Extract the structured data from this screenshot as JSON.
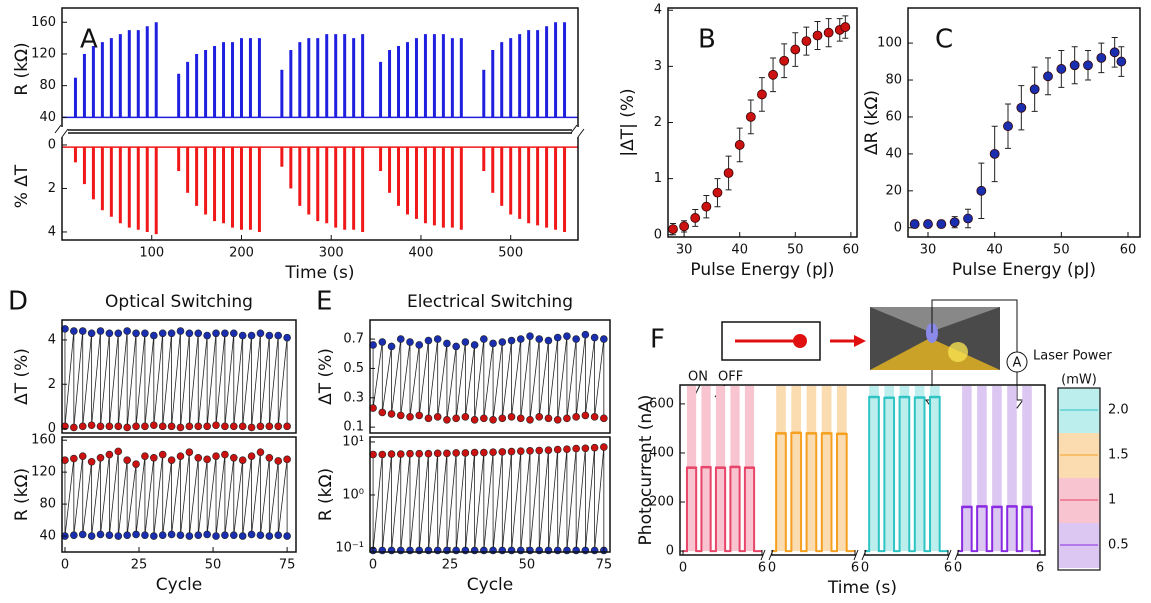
{
  "chart_data": [
    {
      "type": "spikes",
      "panel": "A",
      "ylabel": "R (kΩ)",
      "color": "#1f1fe0",
      "baseline": 40,
      "x": [
        15,
        25,
        35,
        45,
        55,
        65,
        75,
        85,
        95,
        105,
        130,
        140,
        150,
        160,
        170,
        180,
        190,
        200,
        210,
        220,
        245,
        255,
        265,
        275,
        285,
        295,
        305,
        315,
        325,
        335,
        355,
        365,
        375,
        385,
        395,
        405,
        415,
        425,
        435,
        445,
        470,
        480,
        490,
        500,
        510,
        520,
        530,
        540,
        550,
        560
      ],
      "values": [
        90,
        120,
        130,
        135,
        140,
        145,
        150,
        150,
        155,
        160,
        95,
        110,
        120,
        125,
        130,
        135,
        135,
        140,
        140,
        140,
        100,
        125,
        135,
        140,
        140,
        145,
        145,
        145,
        140,
        145,
        110,
        125,
        130,
        135,
        140,
        145,
        145,
        145,
        140,
        140,
        100,
        125,
        135,
        140,
        145,
        150,
        150,
        155,
        160,
        160
      ],
      "xlim": [
        0,
        575
      ],
      "ylim": [
        24,
        178
      ],
      "yticks": [
        40,
        80,
        120,
        160
      ]
    },
    {
      "type": "spikes",
      "ylabel": "% ΔT",
      "xlabel": "Time (s)",
      "color": "#f01818",
      "baseline": 0.1,
      "inverted": true,
      "x": [
        15,
        25,
        35,
        45,
        55,
        65,
        75,
        85,
        95,
        105,
        130,
        140,
        150,
        160,
        170,
        180,
        190,
        200,
        210,
        220,
        245,
        255,
        265,
        275,
        285,
        295,
        305,
        315,
        325,
        335,
        355,
        365,
        375,
        385,
        395,
        405,
        415,
        425,
        435,
        445,
        470,
        480,
        490,
        500,
        510,
        520,
        530,
        540,
        550,
        560
      ],
      "values": [
        0.8,
        1.8,
        2.5,
        3.0,
        3.3,
        3.6,
        3.8,
        3.9,
        4.0,
        4.1,
        1.2,
        2.2,
        2.8,
        3.2,
        3.5,
        3.6,
        3.8,
        3.9,
        3.9,
        4.0,
        1.0,
        2.0,
        2.8,
        3.2,
        3.5,
        3.6,
        3.8,
        3.9,
        3.9,
        4.0,
        1.2,
        2.2,
        2.8,
        3.2,
        3.4,
        3.6,
        3.7,
        3.8,
        3.8,
        3.9,
        1.2,
        2.2,
        2.8,
        3.2,
        3.4,
        3.6,
        3.7,
        3.8,
        3.9,
        4.0
      ],
      "xlim": [
        0,
        575
      ],
      "xticks": [
        100,
        200,
        300,
        400,
        500
      ],
      "ylim": [
        -0.55,
        4.37
      ],
      "yticks": [
        0,
        2,
        4
      ]
    },
    {
      "type": "errorbar",
      "panel": "B",
      "xlabel": "Pulse Energy (pJ)",
      "ylabel": "|ΔT| (%)",
      "color": "#cc1111",
      "x": [
        28,
        30,
        32,
        34,
        36,
        38,
        40,
        42,
        44,
        46,
        48,
        50,
        52,
        54,
        56,
        58,
        59
      ],
      "values": [
        0.1,
        0.15,
        0.3,
        0.5,
        0.75,
        1.1,
        1.6,
        2.1,
        2.5,
        2.85,
        3.1,
        3.3,
        3.45,
        3.55,
        3.6,
        3.65,
        3.7
      ],
      "errors": [
        0.1,
        0.1,
        0.15,
        0.2,
        0.25,
        0.3,
        0.3,
        0.3,
        0.3,
        0.3,
        0.3,
        0.3,
        0.25,
        0.25,
        0.25,
        0.2,
        0.2
      ],
      "xlim": [
        27.1,
        61.1
      ],
      "xticks": [
        30,
        40,
        50,
        60
      ],
      "ylim": [
        -0.04,
        4.04
      ],
      "yticks": [
        0,
        1,
        2,
        3,
        4
      ]
    },
    {
      "type": "errorbar",
      "panel": "C",
      "xlabel": "Pulse Energy (pJ)",
      "ylabel": "ΔR (kΩ)",
      "color": "#1a2fb0",
      "x": [
        28,
        30,
        32,
        34,
        36,
        38,
        40,
        42,
        44,
        46,
        48,
        50,
        52,
        54,
        56,
        58,
        59
      ],
      "values": [
        2,
        2,
        2,
        3,
        5,
        20,
        40,
        55,
        65,
        75,
        82,
        86,
        88,
        88,
        92,
        95,
        90
      ],
      "errors": [
        2,
        2,
        2,
        3,
        5,
        15,
        15,
        12,
        12,
        12,
        10,
        10,
        10,
        8,
        8,
        8,
        8
      ],
      "xlim": [
        27,
        61.8
      ],
      "xticks": [
        30,
        40,
        50,
        60
      ],
      "ylim": [
        -5,
        119
      ],
      "yticks": [
        0,
        20,
        40,
        60,
        80,
        100
      ]
    },
    {
      "type": "cycles",
      "panel": "D",
      "title": "Optical Switching",
      "ylabel": "ΔT (%)",
      "x": [
        0,
        3,
        6,
        9,
        12,
        15,
        18,
        21,
        24,
        27,
        30,
        33,
        36,
        39,
        42,
        45,
        48,
        51,
        54,
        57,
        60,
        63,
        66,
        69,
        72,
        75
      ],
      "series": [
        {
          "color": "#1a2fb0",
          "values": [
            4.5,
            4.4,
            4.4,
            4.3,
            4.4,
            4.3,
            4.3,
            4.4,
            4.3,
            4.3,
            4.2,
            4.3,
            4.3,
            4.4,
            4.3,
            4.3,
            4.2,
            4.3,
            4.3,
            4.3,
            4.2,
            4.2,
            4.3,
            4.2,
            4.2,
            4.1
          ]
        },
        {
          "color": "#cc1111",
          "values": [
            0.1,
            0.05,
            0.1,
            0.15,
            0.1,
            0.1,
            0.1,
            0.05,
            0.1,
            0.1,
            0.15,
            0.1,
            0.1,
            0.05,
            0.1,
            0.1,
            0.1,
            0.15,
            0.1,
            0.1,
            0.1,
            0.05,
            0.1,
            0.1,
            0.1,
            0.1
          ]
        }
      ],
      "xlim": [
        -1,
        78
      ],
      "ylim": [
        -0.2,
        4.9
      ],
      "yticks": [
        0,
        2,
        4
      ]
    },
    {
      "type": "cycles",
      "ylabel": "R (kΩ)",
      "xlabel": "Cycle",
      "x": [
        0,
        3,
        6,
        9,
        12,
        15,
        18,
        21,
        24,
        27,
        30,
        33,
        36,
        39,
        42,
        45,
        48,
        51,
        54,
        57,
        60,
        63,
        66,
        69,
        72,
        75
      ],
      "series": [
        {
          "color": "#cc1111",
          "values": [
            135,
            137,
            140,
            133,
            138,
            142,
            146,
            135,
            130,
            140,
            138,
            142,
            135,
            140,
            145,
            138,
            136,
            140,
            142,
            138,
            135,
            140,
            145,
            138,
            134,
            136
          ]
        },
        {
          "color": "#1a2fb0",
          "values": [
            40,
            41,
            42,
            40,
            42,
            41,
            40,
            41,
            42,
            41,
            40,
            41,
            42,
            41,
            40,
            41,
            42,
            40,
            41,
            41,
            40,
            42,
            41,
            40,
            41,
            40
          ]
        }
      ],
      "xlim": [
        -1,
        78
      ],
      "xticks": [
        0,
        25,
        50,
        75
      ],
      "ylim": [
        20,
        164
      ],
      "yticks": [
        40,
        80,
        120,
        160
      ]
    },
    {
      "type": "cycles",
      "panel": "E",
      "title": "Electrical Switching",
      "ylabel": "ΔT (%)",
      "x": [
        0,
        3,
        6,
        9,
        12,
        15,
        18,
        21,
        24,
        27,
        30,
        33,
        36,
        39,
        42,
        45,
        48,
        51,
        54,
        57,
        60,
        63,
        66,
        69,
        72,
        75
      ],
      "series": [
        {
          "color": "#1a2fb0",
          "values": [
            0.66,
            0.68,
            0.65,
            0.7,
            0.68,
            0.66,
            0.69,
            0.7,
            0.67,
            0.65,
            0.68,
            0.66,
            0.7,
            0.67,
            0.68,
            0.69,
            0.7,
            0.72,
            0.7,
            0.69,
            0.71,
            0.72,
            0.7,
            0.73,
            0.71,
            0.7
          ]
        },
        {
          "color": "#cc1111",
          "values": [
            0.23,
            0.2,
            0.19,
            0.18,
            0.17,
            0.18,
            0.16,
            0.17,
            0.15,
            0.16,
            0.17,
            0.15,
            0.16,
            0.15,
            0.16,
            0.17,
            0.16,
            0.15,
            0.17,
            0.16,
            0.15,
            0.16,
            0.17,
            0.18,
            0.17,
            0.16
          ]
        }
      ],
      "xlim": [
        -1,
        77
      ],
      "ylim": [
        0.06,
        0.83
      ],
      "yticks": [
        0.1,
        0.3,
        0.5,
        0.7
      ]
    },
    {
      "type": "cycles",
      "ylabel": "R (kΩ)",
      "xlabel": "Cycle",
      "log": true,
      "x": [
        0,
        3,
        6,
        9,
        12,
        15,
        18,
        21,
        24,
        27,
        30,
        33,
        36,
        39,
        42,
        45,
        48,
        51,
        54,
        57,
        60,
        63,
        66,
        69,
        72,
        75
      ],
      "series": [
        {
          "color": "#cc1111",
          "values": [
            5.8,
            5.8,
            5.9,
            5.9,
            6.0,
            6.0,
            6.0,
            6.1,
            6.1,
            6.2,
            6.2,
            6.3,
            6.3,
            6.4,
            6.5,
            6.6,
            6.7,
            6.8,
            6.9,
            7.0,
            7.2,
            7.3,
            7.5,
            7.6,
            7.8,
            8.0
          ]
        },
        {
          "color": "#1a2fb0",
          "values": [
            0.09,
            0.09,
            0.09,
            0.09,
            0.09,
            0.09,
            0.09,
            0.09,
            0.09,
            0.09,
            0.09,
            0.09,
            0.09,
            0.09,
            0.09,
            0.09,
            0.09,
            0.09,
            0.09,
            0.09,
            0.09,
            0.09,
            0.09,
            0.09,
            0.09,
            0.09
          ]
        }
      ],
      "xlim": [
        -1,
        77
      ],
      "xticks": [
        0,
        25,
        50,
        75
      ],
      "ylim": [
        0.084,
        12.4
      ],
      "yticks": [
        {
          "value": 0.1,
          "label": "10⁻¹"
        },
        {
          "value": 1,
          "label": "10⁰"
        },
        {
          "value": 10,
          "label": "10¹"
        }
      ]
    },
    {
      "type": "photocurrent",
      "panel": "F",
      "ylabel": "Photocurrent (nA)",
      "xlabel": "Time (s)",
      "xlim": [
        0,
        6
      ],
      "xticks": [
        0,
        6
      ],
      "ylim": [
        -16,
        677
      ],
      "yticks": [
        0,
        200,
        400,
        600
      ],
      "on_start": [
        0.3,
        1.4,
        2.5,
        3.6,
        4.7
      ],
      "on_end": [
        1.0,
        2.1,
        3.2,
        4.3,
        5.4
      ],
      "series": [
        {
          "name": "1",
          "color": "#e8456a",
          "shade": "#f7c4cf",
          "values": [
            340,
            342,
            340,
            343,
            340
          ]
        },
        {
          "name": "1.5",
          "color": "#f5a020",
          "shade": "#fbdcb0",
          "values": [
            480,
            482,
            480,
            480,
            478
          ]
        },
        {
          "name": "2.0",
          "color": "#2ec4c4",
          "shade": "#bdeeee",
          "values": [
            628,
            625,
            628,
            626,
            628
          ]
        },
        {
          "name": "0.5",
          "color": "#8a2be2",
          "shade": "#dcc6f2",
          "values": [
            180,
            182,
            180,
            182,
            180
          ]
        }
      ],
      "legend_title": "(mW)",
      "annotations": [
        "ON",
        "OFF",
        "Laser Power",
        "A"
      ]
    }
  ]
}
